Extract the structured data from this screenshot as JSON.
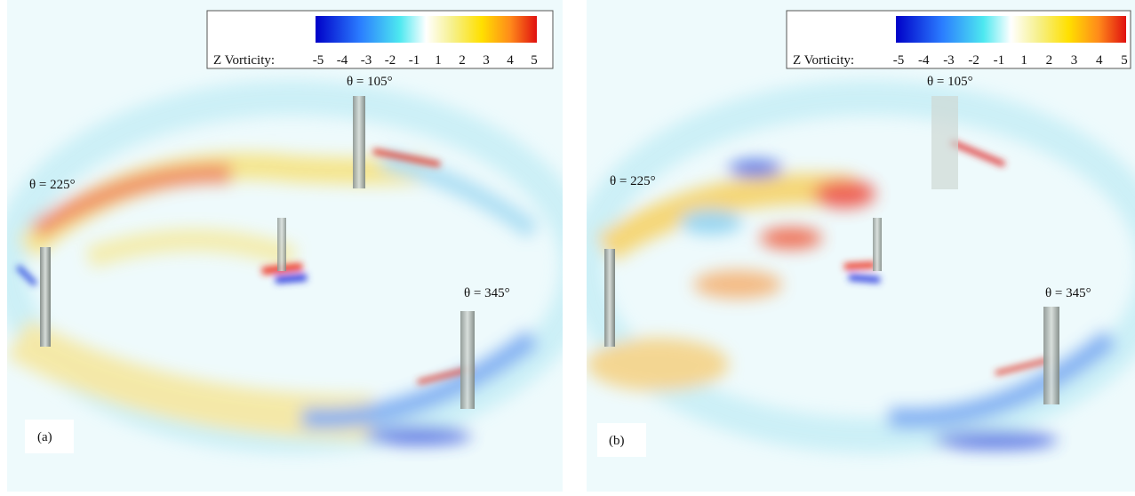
{
  "panels": [
    {
      "colorbar": {
        "label": "Z Vorticity:",
        "ticks": [
          -5,
          -4,
          -3,
          -2,
          -1,
          1,
          2,
          3,
          4,
          5
        ]
      },
      "angles": [
        "θ = 105°",
        "θ = 225°",
        "θ = 345°"
      ],
      "label": "(a)"
    },
    {
      "colorbar": {
        "label": "Z Vorticity:",
        "ticks": [
          -5,
          -4,
          -3,
          -2,
          -1,
          1,
          2,
          3,
          4,
          5
        ]
      },
      "angles": [
        "θ = 105°",
        "θ = 225°",
        "θ = 345°"
      ],
      "label": "(b)"
    }
  ]
}
